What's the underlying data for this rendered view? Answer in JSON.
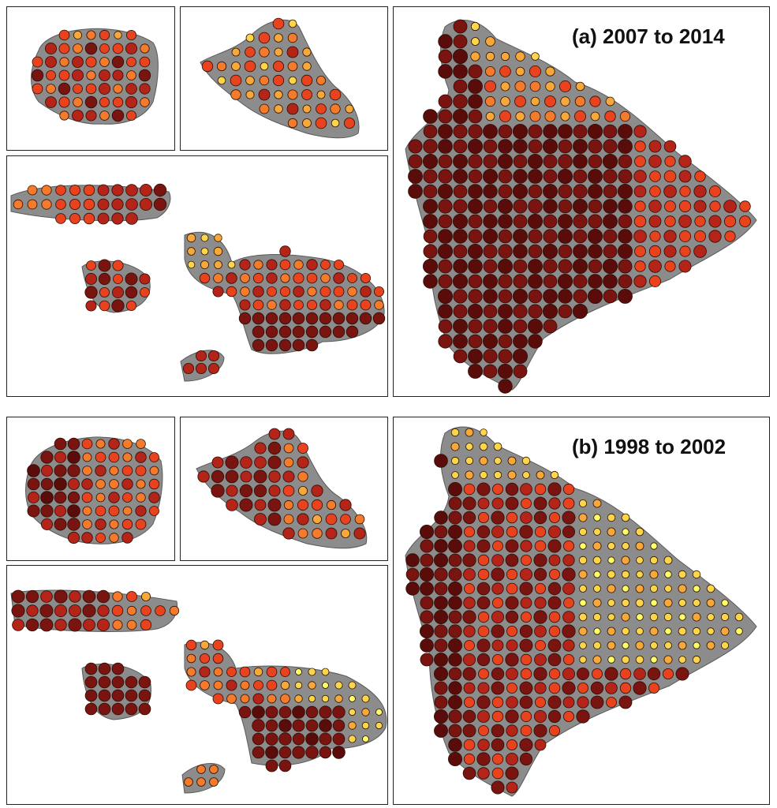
{
  "figure": {
    "panel_a_title": "(a) 2007 to 2014",
    "panel_b_title": "(b) 1998 to 2002"
  },
  "colors": {
    "background": "#ffffff",
    "island": "#8c8c8c",
    "island_edge": "#5a5a5a",
    "frame": "#222222",
    "marker_edge": "#2a0f05",
    "scale": [
      "#ffff66",
      "#fbd54a",
      "#f7a83a",
      "#f37b2b",
      "#e8431e",
      "#b52418",
      "#7a1410",
      "#5a0c0a"
    ]
  },
  "legend": {
    "marker": "circle; larger and darker circles indicate higher values; lighter yellow circles indicate lower values"
  },
  "maps": {
    "regions": [
      "Kauai",
      "Oahu",
      "Maui Nui (Molokai, Lanai, Maui, Kahoolawe)",
      "Hawaii Island"
    ],
    "periods": [
      "2007 to 2014",
      "1998 to 2002"
    ]
  }
}
